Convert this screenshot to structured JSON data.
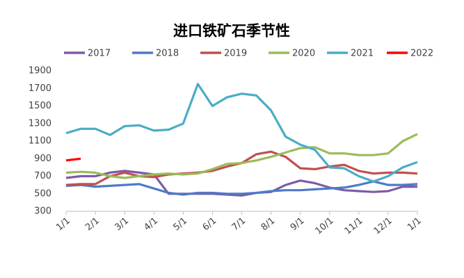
{
  "chart_data": {
    "type": "line",
    "title": "进口铁矿石季节性",
    "categories": [
      "1/1",
      null,
      "2/1",
      null,
      "3/1",
      null,
      "4/1",
      null,
      "5/1",
      null,
      "6/1",
      null,
      "7/1",
      null,
      "8/1",
      null,
      "9/1",
      null,
      "10/1",
      null,
      "11/1",
      null,
      "12/1",
      null,
      "1/1"
    ],
    "series": [
      {
        "name": "2017",
        "color": "#7e5aa6",
        "values": [
          680,
          700,
          700,
          740,
          760,
          740,
          720,
          500,
          500,
          500,
          500,
          490,
          480,
          510,
          520,
          600,
          650,
          620,
          570,
          540,
          530,
          520,
          530,
          580,
          580
        ]
      },
      {
        "name": "2018",
        "color": "#4e7ac7",
        "values": [
          590,
          600,
          580,
          590,
          600,
          610,
          560,
          510,
          490,
          510,
          510,
          500,
          500,
          510,
          530,
          540,
          540,
          550,
          560,
          570,
          600,
          640,
          600,
          600,
          610
        ]
      },
      {
        "name": "2019",
        "color": "#c0504d",
        "values": [
          600,
          610,
          610,
          700,
          740,
          700,
          690,
          720,
          730,
          740,
          760,
          810,
          850,
          950,
          980,
          920,
          790,
          780,
          810,
          830,
          760,
          730,
          740,
          740,
          730
        ]
      },
      {
        "name": "2020",
        "color": "#9bbb59",
        "values": [
          740,
          750,
          740,
          700,
          680,
          700,
          720,
          730,
          720,
          730,
          780,
          840,
          850,
          880,
          920,
          970,
          1020,
          1030,
          960,
          960,
          940,
          940,
          960,
          1100,
          1180
        ]
      },
      {
        "name": "2021",
        "color": "#4bacc6",
        "values": [
          1190,
          1240,
          1240,
          1170,
          1270,
          1280,
          1220,
          1230,
          1300,
          1750,
          1500,
          1600,
          1640,
          1620,
          1450,
          1150,
          1060,
          1000,
          800,
          790,
          700,
          640,
          700,
          800,
          860
        ]
      },
      {
        "name": "2022",
        "color": "#ff0000",
        "values": [
          880,
          900,
          null,
          null,
          null,
          null,
          null,
          null,
          null,
          null,
          null,
          null,
          null,
          null,
          null,
          null,
          null,
          null,
          null,
          null,
          null,
          null,
          null,
          null,
          null
        ]
      }
    ],
    "ylim": [
      300,
      1900
    ],
    "yticks": [
      300,
      500,
      700,
      900,
      1100,
      1300,
      1500,
      1700,
      1900
    ]
  }
}
